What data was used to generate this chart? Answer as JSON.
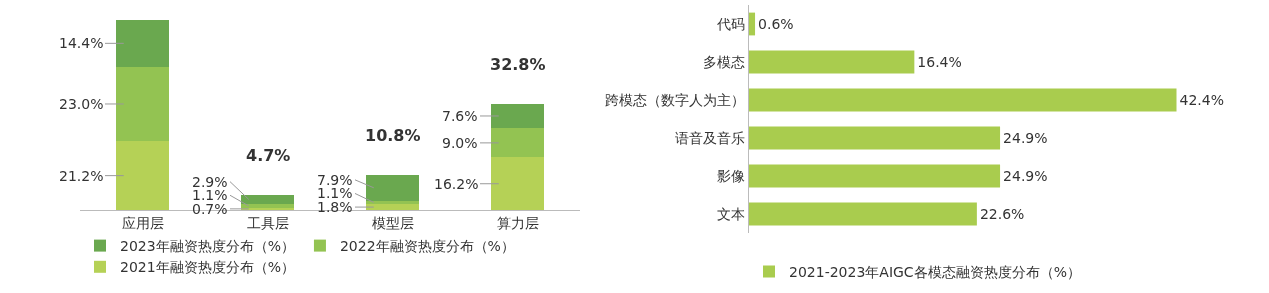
{
  "chart_data": [
    {
      "type": "bar",
      "stacked": true,
      "legend": "bottom",
      "categories": [
        "应用层",
        "工具层",
        "模型层",
        "算力层"
      ],
      "totals": [
        null,
        "4.7%",
        "10.8%",
        "32.8%"
      ],
      "series": [
        {
          "name": "2021年融资热度分布（%）",
          "color": "#b5d156",
          "values": [
            21.2,
            0.7,
            1.8,
            16.2
          ],
          "value_labels": [
            "21.2%",
            "0.7%",
            "1.8%",
            "16.2%"
          ]
        },
        {
          "name": "2022年融资热度分布（%）",
          "color": "#93c352",
          "values": [
            23.0,
            1.1,
            1.1,
            9.0
          ],
          "value_labels": [
            "23.0%",
            "1.1%",
            "1.1%",
            "9.0%"
          ]
        },
        {
          "name": "2023年融资热度分布（%）",
          "color": "#6aa84f",
          "values": [
            14.4,
            2.9,
            7.9,
            7.6
          ],
          "value_labels": [
            "14.4%",
            "2.9%",
            "7.9%",
            "7.6%"
          ]
        }
      ]
    },
    {
      "type": "bar",
      "orientation": "horizontal",
      "legend": "bottom",
      "categories": [
        "代码",
        "多模态",
        "跨模态（数字人为主）",
        "语音及音乐",
        "影像",
        "文本"
      ],
      "series": [
        {
          "name": "2021-2023年AIGC各模态融资热度分布（%）",
          "color": "#a9cc4e",
          "values": [
            0.6,
            16.4,
            42.4,
            24.9,
            24.9,
            22.6
          ],
          "value_labels": [
            "0.6%",
            "16.4%",
            "42.4%",
            "24.9%",
            "24.9%",
            "22.6%"
          ]
        }
      ]
    }
  ]
}
